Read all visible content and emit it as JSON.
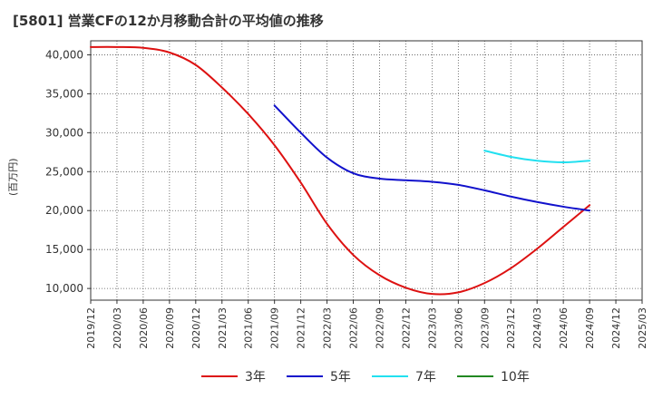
{
  "chart_data": {
    "type": "line",
    "title": "[5801]  営業CFの12か月移動合計の平均値の推移",
    "ylabel": "(百万円)",
    "xlabel": "",
    "x_ticks": [
      "2019/12",
      "2020/03",
      "2020/06",
      "2020/09",
      "2020/12",
      "2021/03",
      "2021/06",
      "2021/09",
      "2021/12",
      "2022/03",
      "2022/06",
      "2022/09",
      "2022/12",
      "2023/03",
      "2023/06",
      "2023/09",
      "2023/12",
      "2024/03",
      "2024/06",
      "2024/09",
      "2024/12",
      "2025/03"
    ],
    "y_ticks": [
      10000,
      15000,
      20000,
      25000,
      30000,
      35000,
      40000
    ],
    "y_tick_labels": [
      "10,000",
      "15,000",
      "20,000",
      "25,000",
      "30,000",
      "35,000",
      "40,000"
    ],
    "ylim": [
      8500,
      41800
    ],
    "grid": true,
    "legend_position": "bottom",
    "series": [
      {
        "name": "3年",
        "color": "#dd1111",
        "x": [
          "2019/12",
          "2020/03",
          "2020/06",
          "2020/09",
          "2020/12",
          "2021/03",
          "2021/06",
          "2021/09",
          "2021/12",
          "2022/03",
          "2022/06",
          "2022/09",
          "2022/12",
          "2023/03",
          "2023/06",
          "2023/09",
          "2023/12",
          "2024/03",
          "2024/06",
          "2024/09"
        ],
        "values": [
          41000,
          41000,
          40900,
          40300,
          38700,
          35800,
          32400,
          28400,
          23600,
          18300,
          14300,
          11700,
          10100,
          9300,
          9500,
          10700,
          12600,
          15100,
          17900,
          20700
        ]
      },
      {
        "name": "5年",
        "color": "#1111cc",
        "x": [
          "2021/09",
          "2021/12",
          "2022/03",
          "2022/06",
          "2022/09",
          "2022/12",
          "2023/03",
          "2023/06",
          "2023/09",
          "2023/12",
          "2024/03",
          "2024/06",
          "2024/09"
        ],
        "values": [
          33500,
          30000,
          26800,
          24800,
          24100,
          23900,
          23700,
          23300,
          22600,
          21800,
          21100,
          20500,
          20000
        ]
      },
      {
        "name": "7年",
        "color": "#22e0f0",
        "x": [
          "2023/09",
          "2023/12",
          "2024/03",
          "2024/06",
          "2024/09"
        ],
        "values": [
          27700,
          26900,
          26400,
          26200,
          26400
        ]
      },
      {
        "name": "10年",
        "color": "#228822",
        "x": [],
        "values": []
      }
    ]
  }
}
